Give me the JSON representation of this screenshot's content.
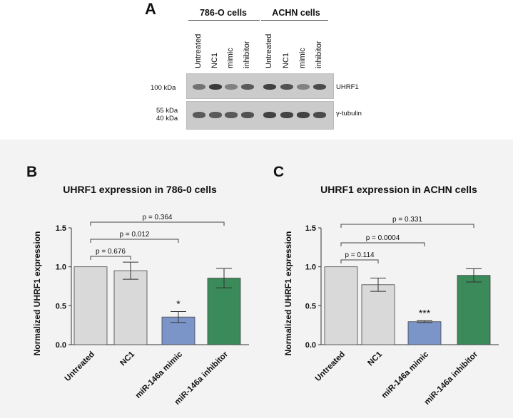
{
  "panel_a": {
    "letter": "A",
    "groups": [
      "786-O cells",
      "ACHN cells"
    ],
    "lanes": [
      "Untreated",
      "NC1",
      "mimic",
      "inhibitor",
      "Untreated",
      "NC1",
      "mimic",
      "inhibitor"
    ],
    "markers": {
      "uhrf1_mw": "100 kDa",
      "tub_mw_1": "55 kDa",
      "tub_mw_2": "40 kDa"
    },
    "proteins": {
      "uhrf1": "UHRF1",
      "tubulin": "γ-tubulin"
    },
    "uhrf1_band_intensity": [
      0.55,
      0.9,
      0.45,
      0.7,
      0.85,
      0.75,
      0.45,
      0.8
    ],
    "tubulin_band_intensity": [
      0.7,
      0.7,
      0.7,
      0.75,
      0.85,
      0.85,
      0.85,
      0.8
    ]
  },
  "chart_data": [
    {
      "type": "bar",
      "letter": "B",
      "title": "UHRF1 expression in 786-0 cells",
      "xlabel": "",
      "ylabel": "Normalized UHRF1 expression",
      "categories": [
        "Untreated",
        "NC1",
        "miR-146a mimic",
        "miR-146a inhibitor"
      ],
      "values": [
        1.0,
        0.95,
        0.355,
        0.855
      ],
      "errors": [
        0,
        0.11,
        0.07,
        0.125
      ],
      "bar_colors": [
        "#d9d9d9",
        "#d9d9d9",
        "#7b95c9",
        "#3a8a5a"
      ],
      "ylim": [
        0,
        1.5
      ],
      "yticks": [
        "0.0",
        "0.5",
        "1.0",
        "1.5"
      ],
      "significance": [
        "",
        "",
        "*",
        ""
      ],
      "comparisons": [
        {
          "from": 0,
          "to": 1,
          "label": "p = 0.676"
        },
        {
          "from": 0,
          "to": 2,
          "label": "p = 0.012"
        },
        {
          "from": 0,
          "to": 3,
          "label": "p = 0.364"
        }
      ]
    },
    {
      "type": "bar",
      "letter": "C",
      "title": "UHRF1 expression in ACHN cells",
      "xlabel": "",
      "ylabel": "Normalized UHRF1 expression",
      "categories": [
        "Untreated",
        "NC1",
        "miR-146a mimic",
        "miR-146a inhibitor"
      ],
      "values": [
        1.0,
        0.77,
        0.295,
        0.89
      ],
      "errors": [
        0,
        0.085,
        0.012,
        0.085
      ],
      "bar_colors": [
        "#d9d9d9",
        "#d9d9d9",
        "#7b95c9",
        "#3a8a5a"
      ],
      "ylim": [
        0,
        1.5
      ],
      "yticks": [
        "0.0",
        "0.5",
        "1.0",
        "1.5"
      ],
      "significance": [
        "",
        "",
        "***",
        ""
      ],
      "comparisons": [
        {
          "from": 0,
          "to": 1,
          "label": "p = 0.114"
        },
        {
          "from": 0,
          "to": 2,
          "label": "p = 0.0004"
        },
        {
          "from": 0,
          "to": 3,
          "label": "p = 0.331"
        }
      ]
    }
  ]
}
